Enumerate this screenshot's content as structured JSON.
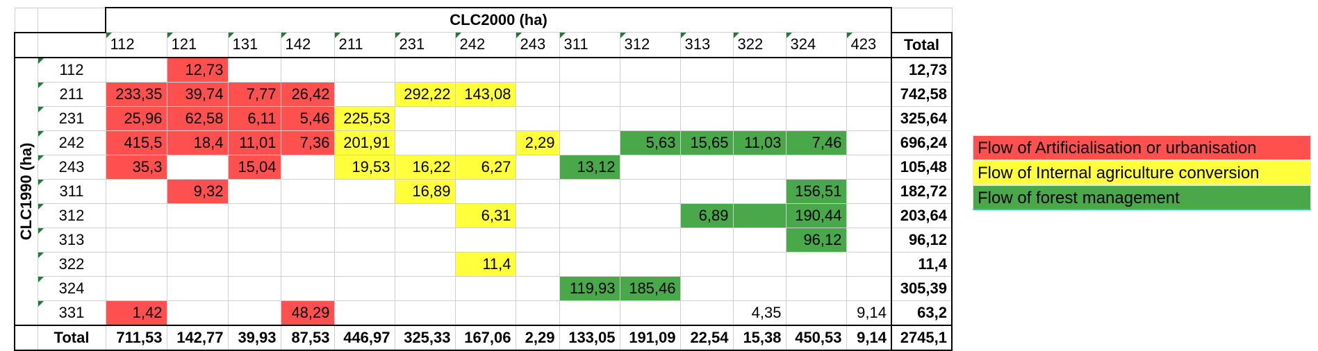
{
  "table": {
    "column_axis_title": "CLC2000 (ha)",
    "row_axis_title": "CLC1990 (ha)",
    "total_label": "Total",
    "columns": [
      "112",
      "121",
      "131",
      "142",
      "211",
      "231",
      "242",
      "243",
      "311",
      "312",
      "313",
      "322",
      "324",
      "423"
    ],
    "rows": [
      {
        "code": "112",
        "values": [
          "",
          "12,73",
          "",
          "",
          "",
          "",
          "",
          "",
          "",
          "",
          "",
          "",
          "",
          ""
        ],
        "colors": [
          "",
          "red",
          "",
          "",
          "",
          "",
          "",
          "",
          "",
          "",
          "",
          "",
          "",
          ""
        ],
        "total": "12,73"
      },
      {
        "code": "211",
        "values": [
          "233,35",
          "39,74",
          "7,77",
          "26,42",
          "",
          "292,22",
          "143,08",
          "",
          "",
          "",
          "",
          "",
          "",
          ""
        ],
        "colors": [
          "red",
          "red",
          "red",
          "red",
          "",
          "yellow",
          "yellow",
          "",
          "",
          "",
          "",
          "",
          "",
          ""
        ],
        "total": "742,58"
      },
      {
        "code": "231",
        "values": [
          "25,96",
          "62,58",
          "6,11",
          "5,46",
          "225,53",
          "",
          "",
          "",
          "",
          "",
          "",
          "",
          "",
          ""
        ],
        "colors": [
          "red",
          "red",
          "red",
          "red",
          "yellow",
          "",
          "",
          "",
          "",
          "",
          "",
          "",
          "",
          ""
        ],
        "total": "325,64"
      },
      {
        "code": "242",
        "values": [
          "415,5",
          "18,4",
          "11,01",
          "7,36",
          "201,91",
          "",
          "",
          "2,29",
          "",
          "5,63",
          "15,65",
          "11,03",
          "7,46",
          ""
        ],
        "colors": [
          "red",
          "red",
          "red",
          "red",
          "yellow",
          "",
          "",
          "yellow",
          "",
          "green",
          "green",
          "green",
          "green",
          ""
        ],
        "total": "696,24"
      },
      {
        "code": "243",
        "values": [
          "35,3",
          "",
          "15,04",
          "",
          "19,53",
          "16,22",
          "6,27",
          "",
          "13,12",
          "",
          "",
          "",
          "",
          ""
        ],
        "colors": [
          "red",
          "",
          "red",
          "",
          "yellow",
          "yellow",
          "yellow",
          "",
          "green",
          "",
          "",
          "",
          "",
          ""
        ],
        "total": "105,48"
      },
      {
        "code": "311",
        "values": [
          "",
          "9,32",
          "",
          "",
          "",
          "16,89",
          "",
          "",
          "",
          "",
          "",
          "",
          "156,51",
          ""
        ],
        "colors": [
          "",
          "red",
          "",
          "",
          "",
          "yellow",
          "",
          "",
          "",
          "",
          "",
          "",
          "green",
          ""
        ],
        "total": "182,72"
      },
      {
        "code": "312",
        "values": [
          "",
          "",
          "",
          "",
          "",
          "",
          "6,31",
          "",
          "",
          "",
          "6,89",
          "",
          "190,44",
          ""
        ],
        "colors": [
          "",
          "",
          "",
          "",
          "",
          "",
          "yellow",
          "",
          "",
          "",
          "green",
          "green",
          "green",
          ""
        ],
        "total": "203,64"
      },
      {
        "code": "313",
        "values": [
          "",
          "",
          "",
          "",
          "",
          "",
          "",
          "",
          "",
          "",
          "",
          "",
          "96,12",
          ""
        ],
        "colors": [
          "",
          "",
          "",
          "",
          "",
          "",
          "",
          "",
          "",
          "",
          "",
          "",
          "green",
          ""
        ],
        "total": "96,12"
      },
      {
        "code": "322",
        "values": [
          "",
          "",
          "",
          "",
          "",
          "",
          "11,4",
          "",
          "",
          "",
          "",
          "",
          "",
          ""
        ],
        "colors": [
          "",
          "",
          "",
          "",
          "",
          "",
          "yellow",
          "",
          "",
          "",
          "",
          "",
          "",
          ""
        ],
        "total": "11,4"
      },
      {
        "code": "324",
        "values": [
          "",
          "",
          "",
          "",
          "",
          "",
          "",
          "",
          "119,93",
          "185,46",
          "",
          "",
          "",
          ""
        ],
        "colors": [
          "",
          "",
          "",
          "",
          "",
          "",
          "",
          "",
          "green",
          "green",
          "",
          "",
          "",
          ""
        ],
        "total": "305,39"
      },
      {
        "code": "331",
        "values": [
          "1,42",
          "",
          "",
          "48,29",
          "",
          "",
          "",
          "",
          "",
          "",
          "",
          "4,35",
          "",
          "9,14"
        ],
        "colors": [
          "red",
          "",
          "",
          "red",
          "",
          "",
          "",
          "",
          "",
          "",
          "",
          "",
          "",
          ""
        ],
        "total": "63,2"
      }
    ],
    "column_totals": [
      "711,53",
      "142,77",
      "39,93",
      "87,53",
      "446,97",
      "325,33",
      "167,06",
      "2,29",
      "133,05",
      "191,09",
      "22,54",
      "15,38",
      "450,53",
      "9,14"
    ],
    "grand_total": "2745,1"
  },
  "legend": {
    "items": [
      {
        "label": "Flow of Artificialisation or urbanisation",
        "color": "#ff5050"
      },
      {
        "label": "Flow of Internal agriculture conversion",
        "color": "#ffff3c"
      },
      {
        "label": "Flow of forest management",
        "color": "#48a84a"
      }
    ]
  },
  "colors": {
    "red": "#ff5050",
    "yellow": "#ffff3c",
    "green": "#48a84a"
  }
}
